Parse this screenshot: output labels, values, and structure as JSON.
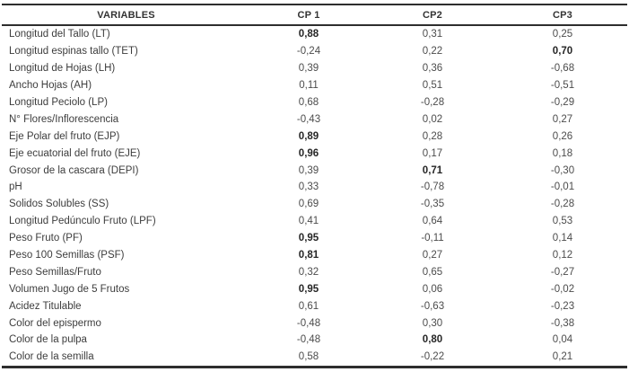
{
  "table": {
    "columns": [
      "VARIABLES",
      "CP 1",
      "CP2",
      "CP3"
    ],
    "decimal_style": "comma",
    "rows": [
      {
        "cells": [
          "Longitud del Tallo (LT)",
          "0,88",
          "0,31",
          "0,25"
        ],
        "bold": [
          1
        ]
      },
      {
        "cells": [
          "Longitud espinas tallo (TET)",
          "-0,24",
          "0,22",
          "0,70"
        ],
        "bold": [
          3
        ]
      },
      {
        "cells": [
          "Longitud de Hojas (LH)",
          "0,39",
          "0,36",
          "-0,68"
        ],
        "bold": []
      },
      {
        "cells": [
          "Ancho Hojas (AH)",
          "0,11",
          "0,51",
          "-0,51"
        ],
        "bold": []
      },
      {
        "cells": [
          "Longitud Peciolo (LP)",
          "0,68",
          "-0,28",
          "-0,29"
        ],
        "bold": []
      },
      {
        "cells": [
          "N° Flores/Inflorescencia",
          "-0,43",
          "0,02",
          "0,27"
        ],
        "bold": []
      },
      {
        "cells": [
          "Eje Polar del fruto (EJP)",
          "0,89",
          "0,28",
          "0,26"
        ],
        "bold": [
          1
        ]
      },
      {
        "cells": [
          "Eje ecuatorial del fruto (EJE)",
          "0,96",
          "0,17",
          "0,18"
        ],
        "bold": [
          1
        ]
      },
      {
        "cells": [
          "Grosor de la cascara (DEPI)",
          "0,39",
          "0,71",
          "-0,30"
        ],
        "bold": [
          2
        ]
      },
      {
        "cells": [
          "pH",
          "0,33",
          "-0,78",
          "-0,01"
        ],
        "bold": []
      },
      {
        "cells": [
          "Solidos Solubles (SS)",
          "0,69",
          "-0,35",
          "-0,28"
        ],
        "bold": []
      },
      {
        "cells": [
          "Longitud Pedúnculo Fruto (LPF)",
          "0,41",
          "0,64",
          "0,53"
        ],
        "bold": []
      },
      {
        "cells": [
          "Peso Fruto (PF)",
          "0,95",
          "-0,11",
          "0,14"
        ],
        "bold": [
          1
        ]
      },
      {
        "cells": [
          "Peso 100 Semillas (PSF)",
          "0,81",
          "0,27",
          "0,12"
        ],
        "bold": [
          1
        ]
      },
      {
        "cells": [
          "Peso Semillas/Fruto",
          "0,32",
          "0,65",
          "-0,27"
        ],
        "bold": []
      },
      {
        "cells": [
          "Volumen Jugo de 5 Frutos",
          "0,95",
          "0,06",
          "-0,02"
        ],
        "bold": [
          1
        ]
      },
      {
        "cells": [
          "Acidez Titulable",
          "0,61",
          "-0,63",
          "-0,23"
        ],
        "bold": []
      },
      {
        "cells": [
          "Color del epispermo",
          "-0,48",
          "0,30",
          "-0,38"
        ],
        "bold": []
      },
      {
        "cells": [
          "Color de la pulpa",
          "-0,48",
          "0,80",
          "0,04"
        ],
        "bold": [
          2
        ]
      },
      {
        "cells": [
          "Color de la semilla",
          "0,58",
          "-0,22",
          "0,21"
        ],
        "bold": []
      }
    ]
  },
  "colors": {
    "border": "#2e2e2e",
    "label_text": "#3d3d3d",
    "number_text": "#4c4c4c",
    "bold_text": "#262626",
    "background": "#ffffff"
  }
}
